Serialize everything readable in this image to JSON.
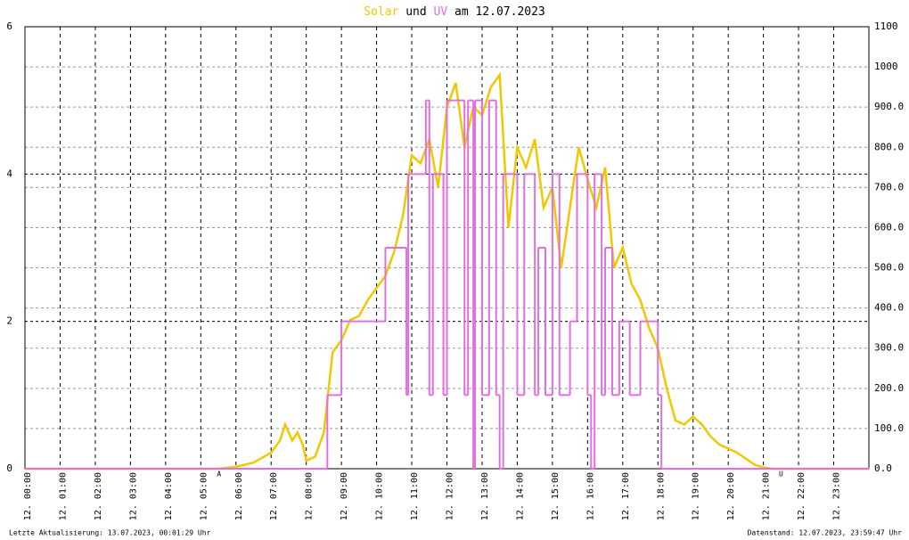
{
  "chart_data": {
    "type": "line",
    "title_parts": [
      {
        "text": "Solar",
        "color": "#f0c800"
      },
      {
        "text": "und",
        "color": "#000000"
      },
      {
        "text": "UV",
        "color": "#e070e0"
      },
      {
        "text": "am 12.07.2023",
        "color": "#000000"
      }
    ],
    "xlim": [
      0,
      24
    ],
    "xticks": [
      {
        "value": 0,
        "label": "12. 00:00"
      },
      {
        "value": 1,
        "label": "12. 01:00"
      },
      {
        "value": 2,
        "label": "12. 02:00"
      },
      {
        "value": 3,
        "label": "12. 03:00"
      },
      {
        "value": 4,
        "label": "12. 04:00"
      },
      {
        "value": 5,
        "label": "12. 05:00"
      },
      {
        "value": 6,
        "label": "12. 06:00"
      },
      {
        "value": 7,
        "label": "12. 07:00"
      },
      {
        "value": 8,
        "label": "12. 08:00"
      },
      {
        "value": 9,
        "label": "12. 09:00"
      },
      {
        "value": 10,
        "label": "12. 10:00"
      },
      {
        "value": 11,
        "label": "12. 11:00"
      },
      {
        "value": 12,
        "label": "12. 12:00"
      },
      {
        "value": 13,
        "label": "12. 13:00"
      },
      {
        "value": 14,
        "label": "12. 14:00"
      },
      {
        "value": 15,
        "label": "12. 15:00"
      },
      {
        "value": 16,
        "label": "12. 16:00"
      },
      {
        "value": 17,
        "label": "12. 17:00"
      },
      {
        "value": 18,
        "label": "12. 18:00"
      },
      {
        "value": 19,
        "label": "12. 19:00"
      },
      {
        "value": 20,
        "label": "12. 20:00"
      },
      {
        "value": 21,
        "label": "12. 21:00"
      },
      {
        "value": 22,
        "label": "12. 22:00"
      },
      {
        "value": 23,
        "label": "12. 23:00"
      }
    ],
    "ylim": [
      0,
      6
    ],
    "yticks": [
      0,
      2,
      4,
      6
    ],
    "y2lim": [
      0,
      1100
    ],
    "y2ticks": [
      {
        "value": 0,
        "label": "0.0"
      },
      {
        "value": 100,
        "label": "100.0"
      },
      {
        "value": 200,
        "label": "200.0"
      },
      {
        "value": 300,
        "label": "300.0"
      },
      {
        "value": 400,
        "label": "400.0"
      },
      {
        "value": 500,
        "label": "500.0"
      },
      {
        "value": 600,
        "label": "600.0"
      },
      {
        "value": 700,
        "label": "700.0"
      },
      {
        "value": 800,
        "label": "800.0"
      },
      {
        "value": 900,
        "label": "900.0"
      },
      1000,
      1100
    ],
    "grid": true,
    "series": [
      {
        "name": "Solar",
        "color": "#f0c800",
        "axis": "y2",
        "style": "line",
        "x": [
          0,
          5.5,
          6,
          6.5,
          7,
          7.25,
          7.4,
          7.6,
          7.75,
          7.9,
          8,
          8.25,
          8.5,
          8.75,
          9,
          9.25,
          9.5,
          9.75,
          10,
          10.25,
          10.5,
          10.75,
          11,
          11.25,
          11.5,
          11.75,
          12,
          12.25,
          12.5,
          12.75,
          13,
          13.25,
          13.5,
          13.75,
          14,
          14.25,
          14.5,
          14.75,
          15,
          15.25,
          15.5,
          15.75,
          16,
          16.25,
          16.5,
          16.75,
          17,
          17.25,
          17.5,
          17.75,
          18,
          18.25,
          18.5,
          18.75,
          19,
          19.25,
          19.5,
          19.75,
          20,
          20.25,
          20.5,
          20.75,
          21,
          21.25,
          24
        ],
        "values": [
          0,
          0,
          5,
          15,
          40,
          70,
          110,
          70,
          90,
          60,
          20,
          30,
          90,
          290,
          320,
          370,
          380,
          420,
          450,
          480,
          540,
          630,
          780,
          760,
          820,
          700,
          900,
          960,
          800,
          900,
          880,
          950,
          980,
          600,
          800,
          750,
          820,
          650,
          700,
          500,
          650,
          800,
          720,
          650,
          750,
          500,
          550,
          460,
          420,
          350,
          300,
          200,
          120,
          110,
          130,
          110,
          80,
          60,
          50,
          40,
          25,
          10,
          3,
          0,
          0
        ]
      },
      {
        "name": "UV",
        "color": "#e070e0",
        "style": "step",
        "x": [
          0,
          8.6,
          9.0,
          10.25,
          10.85,
          10.9,
          11.4,
          11.5,
          11.6,
          11.9,
          12.0,
          12.5,
          12.6,
          12.75,
          12.8,
          13.0,
          13.2,
          13.4,
          13.5,
          13.6,
          14.0,
          14.2,
          14.5,
          14.6,
          14.8,
          15.0,
          15.2,
          15.5,
          15.7,
          16.0,
          16.1,
          16.2,
          16.4,
          16.5,
          16.7,
          16.9,
          17.2,
          17.5,
          18.0,
          18.1,
          24
        ],
        "values": [
          0,
          1,
          2,
          3,
          1,
          4,
          5,
          1,
          4,
          1,
          5,
          1,
          5,
          0,
          5,
          1,
          5,
          1,
          0,
          4,
          1,
          4,
          1,
          3,
          1,
          4,
          1,
          2,
          4,
          1,
          0,
          4,
          1,
          3,
          1,
          2,
          1,
          2,
          1,
          0,
          0
        ]
      }
    ],
    "markers": [
      {
        "label": "A",
        "x": 5.52,
        "color": "#cc0000"
      },
      {
        "label": "U",
        "x": 21.5,
        "color": "#cc0000"
      }
    ],
    "footer_left": "Letzte Aktualisierung: 13.07.2023, 00:01:29 Uhr",
    "footer_right": "Datenstand: 12.07.2023, 23:59:47 Uhr"
  }
}
